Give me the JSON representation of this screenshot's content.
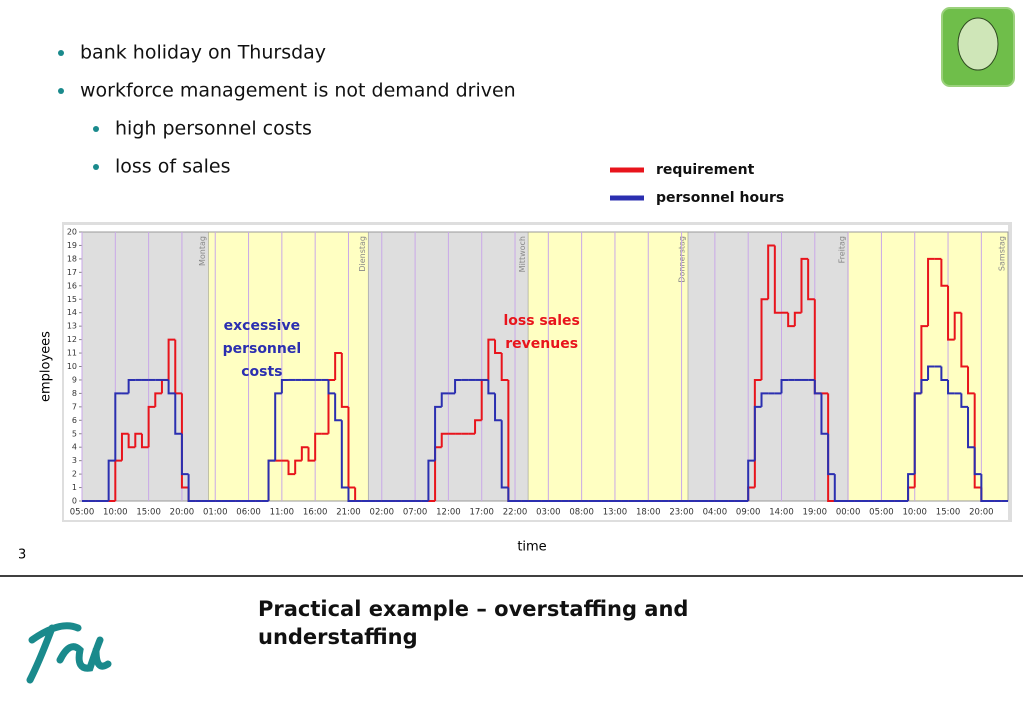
{
  "bullets": [
    {
      "text": "bank holiday on Thursday",
      "level": 1
    },
    {
      "text": "workforce management is not demand driven",
      "level": 1
    },
    {
      "text": "high personnel costs",
      "level": 2
    },
    {
      "text": "loss of sales",
      "level": 2
    }
  ],
  "page_number": "3",
  "slide_title": [
    "Practical example – overstaffing and",
    "understaffing"
  ],
  "chart_data": {
    "type": "step",
    "ylabel": "employees",
    "xlabel": "time",
    "legend": "upper right",
    "x": [
      0,
      1,
      2,
      3,
      4,
      5,
      6,
      7,
      8,
      9,
      10,
      11,
      12,
      13,
      14,
      15,
      16,
      17,
      18,
      19,
      20,
      21,
      22,
      23,
      24,
      25,
      26,
      27,
      28,
      29,
      30,
      31,
      32,
      33,
      34,
      35,
      36,
      37,
      38,
      39,
      40,
      41,
      42,
      43,
      44,
      45,
      46,
      47,
      48,
      49,
      50,
      51,
      52,
      53,
      54,
      55,
      56,
      57,
      58,
      59,
      60,
      61,
      62,
      63,
      64,
      65,
      66,
      67,
      68,
      69,
      70,
      71,
      72,
      73,
      74,
      75,
      76,
      77,
      78,
      79,
      80,
      81,
      82,
      83,
      84,
      85,
      86,
      87,
      88,
      89,
      90,
      91,
      92,
      93,
      94,
      95,
      96,
      97,
      98,
      99,
      100,
      101,
      102,
      103,
      104,
      105,
      106,
      107,
      108,
      109,
      110,
      111,
      112,
      113,
      114,
      115,
      116,
      117,
      118,
      119,
      120,
      121,
      122,
      123,
      124,
      125,
      126,
      127,
      128,
      129,
      130,
      131,
      132,
      133,
      134,
      135,
      136,
      137,
      138
    ],
    "series": [
      {
        "name": "requirement",
        "color": "#e8141c",
        "values": [
          0,
          0,
          0,
          0,
          0,
          3,
          5,
          4,
          5,
          4,
          7,
          8,
          9,
          12,
          8,
          1,
          0,
          0,
          0,
          0,
          0,
          0,
          0,
          0,
          0,
          0,
          0,
          0,
          3,
          3,
          3,
          2,
          3,
          4,
          3,
          5,
          5,
          9,
          11,
          7,
          1,
          0,
          0,
          0,
          0,
          0,
          0,
          0,
          0,
          0,
          0,
          0,
          0,
          4,
          5,
          5,
          5,
          5,
          5,
          6,
          9,
          12,
          11,
          9,
          0,
          0,
          0,
          0,
          0,
          0,
          0,
          0,
          0,
          0,
          0,
          0,
          0,
          0,
          0,
          0,
          0,
          0,
          0,
          0,
          0,
          0,
          0,
          0,
          0,
          0,
          0,
          0,
          0,
          0,
          0,
          0,
          0,
          0,
          0,
          0,
          1,
          9,
          15,
          19,
          14,
          14,
          13,
          14,
          18,
          15,
          8,
          8,
          0,
          0,
          0,
          0,
          0,
          0,
          0,
          0,
          0,
          0,
          0,
          0,
          1,
          8,
          13,
          18,
          18,
          16,
          12,
          14,
          10,
          8,
          1,
          0,
          0,
          0,
          0
        ]
      },
      {
        "name": "personnel hours",
        "color": "#2b2fb0",
        "values": [
          0,
          0,
          0,
          0,
          3,
          8,
          8,
          9,
          9,
          9,
          9,
          9,
          9,
          8,
          5,
          2,
          0,
          0,
          0,
          0,
          0,
          0,
          0,
          0,
          0,
          0,
          0,
          0,
          3,
          8,
          9,
          9,
          9,
          9,
          9,
          9,
          9,
          8,
          6,
          1,
          0,
          0,
          0,
          0,
          0,
          0,
          0,
          0,
          0,
          0,
          0,
          0,
          3,
          7,
          8,
          8,
          9,
          9,
          9,
          9,
          9,
          8,
          6,
          1,
          0,
          0,
          0,
          0,
          0,
          0,
          0,
          0,
          0,
          0,
          0,
          0,
          0,
          0,
          0,
          0,
          0,
          0,
          0,
          0,
          0,
          0,
          0,
          0,
          0,
          0,
          0,
          0,
          0,
          0,
          0,
          0,
          0,
          0,
          0,
          0,
          3,
          7,
          8,
          8,
          8,
          9,
          9,
          9,
          9,
          9,
          8,
          5,
          2,
          0,
          0,
          0,
          0,
          0,
          0,
          0,
          0,
          0,
          0,
          0,
          2,
          8,
          9,
          10,
          10,
          9,
          8,
          8,
          7,
          4,
          2,
          0,
          0,
          0,
          0
        ]
      }
    ],
    "xlim": [
      0,
      139
    ],
    "ylim": [
      0,
      20
    ],
    "yticks": [
      0,
      1,
      2,
      3,
      4,
      5,
      6,
      7,
      8,
      9,
      10,
      11,
      12,
      13,
      14,
      15,
      16,
      17,
      18,
      19,
      20
    ],
    "xticks": [
      {
        "value": 0,
        "label": "05:00"
      },
      {
        "value": 5,
        "label": "10:00"
      },
      {
        "value": 10,
        "label": "15:00"
      },
      {
        "value": 15,
        "label": "20:00"
      },
      {
        "value": 20,
        "label": "01:00"
      },
      {
        "value": 25,
        "label": "06:00"
      },
      {
        "value": 30,
        "label": "11:00"
      },
      {
        "value": 35,
        "label": "16:00"
      },
      {
        "value": 40,
        "label": "21:00"
      },
      {
        "value": 45,
        "label": "02:00"
      },
      {
        "value": 50,
        "label": "07:00"
      },
      {
        "value": 55,
        "label": "12:00"
      },
      {
        "value": 60,
        "label": "17:00"
      },
      {
        "value": 65,
        "label": "22:00"
      },
      {
        "value": 70,
        "label": "03:00"
      },
      {
        "value": 75,
        "label": "08:00"
      },
      {
        "value": 80,
        "label": "13:00"
      },
      {
        "value": 85,
        "label": "18:00"
      },
      {
        "value": 90,
        "label": "23:00"
      },
      {
        "value": 95,
        "label": "04:00"
      },
      {
        "value": 100,
        "label": "09:00"
      },
      {
        "value": 105,
        "label": "14:00"
      },
      {
        "value": 110,
        "label": "19:00"
      },
      {
        "value": 115,
        "label": "00:00"
      },
      {
        "value": 120,
        "label": "05:00"
      },
      {
        "value": 125,
        "label": "10:00"
      },
      {
        "value": 130,
        "label": "15:00"
      },
      {
        "value": 135,
        "label": "20:00"
      }
    ],
    "days": [
      {
        "label": "Montag",
        "x": 19
      },
      {
        "label": "Dienstag",
        "x": 43
      },
      {
        "label": "Mittwoch",
        "x": 67
      },
      {
        "label": "Donnerstag",
        "x": 91
      },
      {
        "label": "Freitag",
        "x": 115
      },
      {
        "label": "Samstag",
        "x": 139
      }
    ],
    "band_colors": [
      "#dedede",
      "#ffffc2"
    ],
    "grid_color": "#c9a8e8",
    "annotations": [
      {
        "lines": [
          "excessive",
          "personnel",
          "costs"
        ],
        "color": "#2b2fb0",
        "x": 27,
        "y": 13
      },
      {
        "lines": [
          "loss sales",
          "revenues"
        ],
        "color": "#e8141c",
        "x": 69,
        "y": 13.4
      }
    ]
  }
}
